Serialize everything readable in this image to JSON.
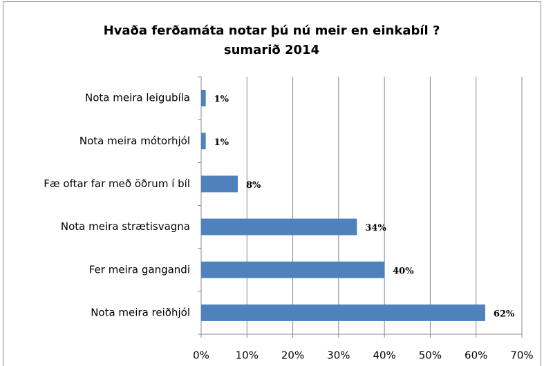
{
  "chart_data": {
    "type": "bar",
    "orientation": "horizontal",
    "title": "Hvaða ferðamáta notar þú nú meir en einkabíl ?",
    "subtitle": "sumarið 2014",
    "categories": [
      "Nota meira leigubíla",
      "Nota meira mótorhjól",
      "Fæ oftar far með öðrum í bíl",
      "Nota meira strætisvagna",
      "Fer meira gangandi",
      "Nota meira reiðhjól"
    ],
    "values": [
      1,
      1,
      8,
      34,
      40,
      62
    ],
    "value_labels": [
      "1%",
      "1%",
      "8%",
      "34%",
      "40%",
      "62%"
    ],
    "color": "#4f81bd",
    "xlim": [
      0,
      70
    ],
    "xticks": [
      {
        "value": 0,
        "label": "0%"
      },
      {
        "value": 10,
        "label": "10%"
      },
      {
        "value": 20,
        "label": "20%"
      },
      {
        "value": 30,
        "label": "30%"
      },
      {
        "value": 40,
        "label": "40%"
      },
      {
        "value": 50,
        "label": "50%"
      },
      {
        "value": 60,
        "label": "60%"
      },
      {
        "value": 70,
        "label": "70%"
      }
    ],
    "grid": true
  }
}
